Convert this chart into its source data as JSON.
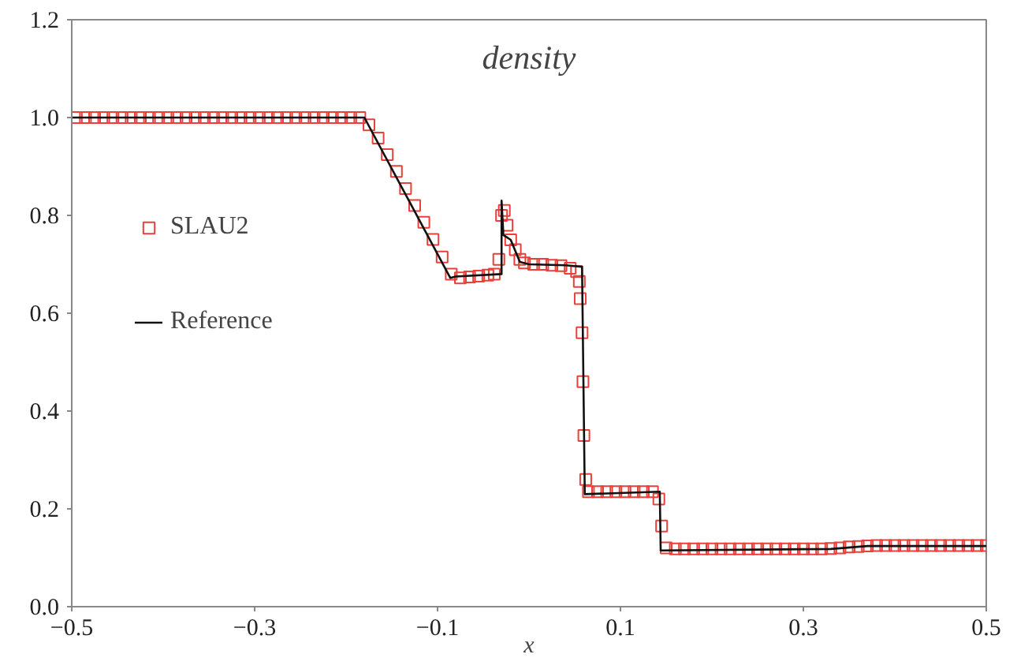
{
  "chart_data": {
    "type": "scatter",
    "title": "density",
    "xlabel": "x",
    "xlim": [
      -0.5,
      0.5
    ],
    "ylim": [
      0,
      1.2
    ],
    "xticks": [
      -0.5,
      -0.3,
      -0.1,
      0.1,
      0.3,
      0.5
    ],
    "yticks": [
      {
        "value": 0,
        "label": "0.0"
      },
      0.2,
      0.4,
      0.6,
      0.8,
      {
        "value": 1,
        "label": "1.0"
      },
      1.2
    ],
    "grid": false,
    "legend": "left",
    "series": [
      {
        "name": "SLAU2",
        "marker": "square",
        "color": "#e8403a",
        "x": [
          -0.495,
          -0.485,
          -0.475,
          -0.465,
          -0.455,
          -0.445,
          -0.435,
          -0.425,
          -0.415,
          -0.405,
          -0.395,
          -0.385,
          -0.375,
          -0.365,
          -0.355,
          -0.345,
          -0.335,
          -0.325,
          -0.315,
          -0.305,
          -0.295,
          -0.285,
          -0.275,
          -0.265,
          -0.255,
          -0.245,
          -0.235,
          -0.225,
          -0.215,
          -0.205,
          -0.195,
          -0.185,
          -0.175,
          -0.165,
          -0.155,
          -0.145,
          -0.135,
          -0.125,
          -0.115,
          -0.105,
          -0.095,
          -0.085,
          -0.075,
          -0.065,
          -0.055,
          -0.045,
          -0.038,
          -0.033,
          -0.03,
          -0.027,
          -0.024,
          -0.02,
          -0.015,
          -0.01,
          -0.005,
          0.005,
          0.015,
          0.025,
          0.035,
          0.045,
          0.052,
          0.055,
          0.056,
          0.058,
          0.059,
          0.06,
          0.062,
          0.065,
          0.075,
          0.085,
          0.095,
          0.105,
          0.115,
          0.125,
          0.135,
          0.142,
          0.145,
          0.15,
          0.16,
          0.17,
          0.18,
          0.19,
          0.2,
          0.21,
          0.22,
          0.23,
          0.24,
          0.25,
          0.26,
          0.27,
          0.28,
          0.29,
          0.3,
          0.31,
          0.32,
          0.33,
          0.34,
          0.35,
          0.36,
          0.37,
          0.38,
          0.39,
          0.4,
          0.41,
          0.42,
          0.43,
          0.44,
          0.45,
          0.46,
          0.47,
          0.48,
          0.49,
          0.5
        ],
        "values": [
          1,
          1,
          1,
          1,
          1,
          1,
          1,
          1,
          1,
          1,
          1,
          1,
          1,
          1,
          1,
          1,
          1,
          1,
          1,
          1,
          1,
          1,
          1,
          1,
          1,
          1,
          1,
          1,
          1,
          1,
          1,
          1,
          0.985,
          0.958,
          0.924,
          0.89,
          0.855,
          0.82,
          0.786,
          0.751,
          0.715,
          0.68,
          0.672,
          0.674,
          0.676,
          0.678,
          0.68,
          0.71,
          0.8,
          0.81,
          0.78,
          0.75,
          0.73,
          0.71,
          0.703,
          0.7,
          0.7,
          0.698,
          0.697,
          0.692,
          0.685,
          0.665,
          0.63,
          0.56,
          0.46,
          0.35,
          0.26,
          0.235,
          0.235,
          0.235,
          0.235,
          0.235,
          0.235,
          0.235,
          0.235,
          0.22,
          0.165,
          0.12,
          0.118,
          0.118,
          0.118,
          0.118,
          0.118,
          0.118,
          0.118,
          0.118,
          0.118,
          0.118,
          0.118,
          0.118,
          0.118,
          0.118,
          0.118,
          0.118,
          0.118,
          0.119,
          0.12,
          0.122,
          0.123,
          0.124,
          0.125,
          0.125,
          0.125,
          0.125,
          0.125,
          0.125,
          0.125,
          0.125,
          0.125,
          0.125,
          0.125,
          0.125,
          0.125
        ]
      },
      {
        "name": "Reference",
        "type": "line",
        "line_style": "solid",
        "color": "#111111",
        "x": [
          -0.5,
          -0.18,
          -0.086,
          -0.08,
          -0.03,
          -0.03,
          -0.028,
          -0.02,
          -0.01,
          0,
          0.04,
          0.058,
          0.061,
          0.143,
          0.144,
          0.33,
          0.37,
          0.5
        ],
        "values": [
          1,
          1,
          0.672,
          0.675,
          0.68,
          0.83,
          0.76,
          0.75,
          0.705,
          0.7,
          0.698,
          0.695,
          0.23,
          0.235,
          0.115,
          0.118,
          0.124,
          0.124
        ]
      }
    ]
  }
}
